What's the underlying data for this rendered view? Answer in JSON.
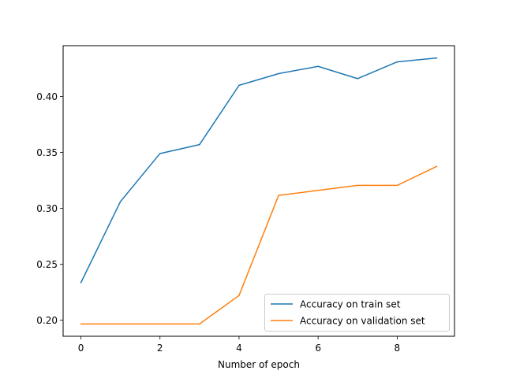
{
  "chart_data": {
    "type": "line",
    "title": "",
    "xlabel": "Number of epoch",
    "ylabel": "",
    "xlim": [
      -0.45,
      9.45
    ],
    "ylim": [
      0.1855,
      0.4455
    ],
    "xticks": [
      0,
      2,
      4,
      6,
      8
    ],
    "xtick_labels": [
      "0",
      "2",
      "4",
      "6",
      "8"
    ],
    "yticks": [
      0.2,
      0.25,
      0.3,
      0.35,
      0.4
    ],
    "ytick_labels": [
      "0.20",
      "0.25",
      "0.30",
      "0.35",
      "0.40"
    ],
    "grid": false,
    "legend_position": "lower-right",
    "x": [
      0,
      1,
      2,
      3,
      4,
      5,
      6,
      7,
      8,
      9
    ],
    "series": [
      {
        "name": "Accuracy on train set",
        "color": "#1f77b4",
        "values": [
          0.2335,
          0.306,
          0.349,
          0.357,
          0.41,
          0.4205,
          0.427,
          0.416,
          0.431,
          0.4345
        ]
      },
      {
        "name": "Accuracy on validation set",
        "color": "#ff7f0e",
        "values": [
          0.1965,
          0.1965,
          0.1965,
          0.1965,
          0.222,
          0.3115,
          0.316,
          0.3205,
          0.3205,
          0.3375
        ]
      }
    ]
  }
}
